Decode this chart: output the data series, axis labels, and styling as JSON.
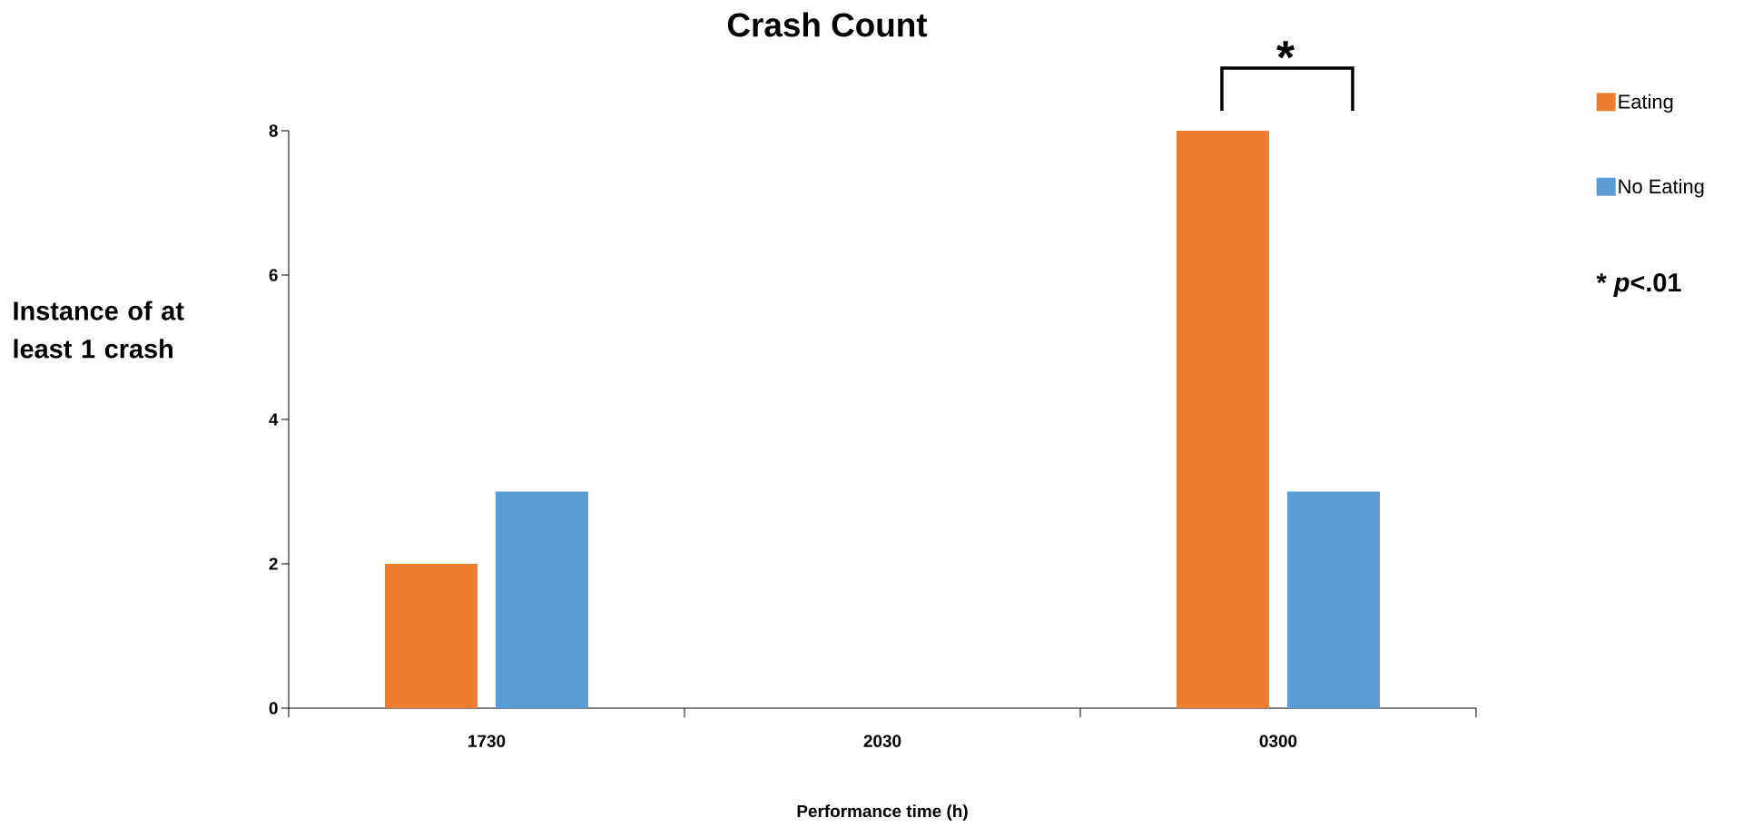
{
  "chart_data": {
    "type": "bar",
    "title": "Crash Count",
    "xlabel": "Performance time (h)",
    "ylabel": "Instance of at least 1 crash",
    "categories": [
      "1730",
      "2030",
      "0300"
    ],
    "series": [
      {
        "name": "Eating",
        "color": "#ed7d31",
        "values": [
          2,
          0,
          8
        ]
      },
      {
        "name": "No Eating",
        "color": "#5b9bd5",
        "values": [
          3,
          0,
          3
        ]
      }
    ],
    "ylim": [
      0,
      8
    ],
    "yticks": [
      0,
      2,
      4,
      6,
      8
    ],
    "grid": false,
    "legend": "top right",
    "annotations": [
      "*",
      "* *p*<.01"
    ]
  }
}
